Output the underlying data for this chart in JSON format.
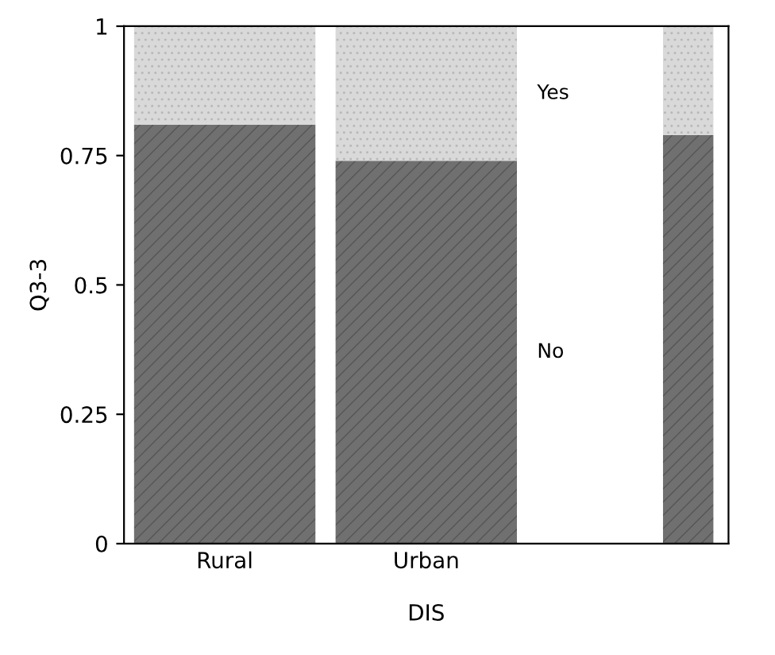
{
  "chart_data": {
    "type": "bar",
    "stacked": true,
    "xlabel": "DIS",
    "ylabel": "Q3-3",
    "categories": [
      "Rural",
      "Urban",
      null
    ],
    "series": [
      {
        "name": "No",
        "color": "#707070",
        "values": [
          0.81,
          0.74,
          0.79
        ]
      },
      {
        "name": "Yes",
        "color": "#d9d9d9",
        "values": [
          0.19,
          0.26,
          0.21
        ]
      }
    ],
    "ylim": [
      0,
      1
    ],
    "yticks": [
      0,
      0.25,
      0.5,
      0.75,
      1
    ],
    "grid": false,
    "legend": false
  }
}
